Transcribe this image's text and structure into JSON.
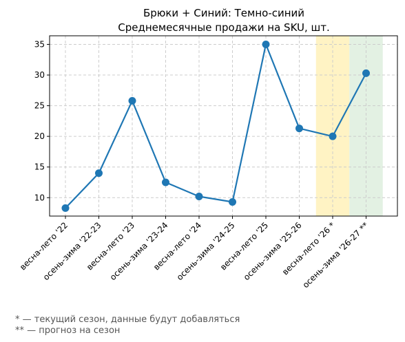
{
  "chart_data": {
    "type": "line",
    "title": "Брюки + Синий: Темно-синий",
    "subtitle": "Среднемесячные продажи на SKU, шт.",
    "xlabel": "",
    "ylabel": "",
    "categories": [
      "весна-лето '22",
      "осень-зима '22-23",
      "весна-лето '23",
      "осень-зима '23-24",
      "весна-лето '24",
      "осень-зима '24-25",
      "весна-лето '25",
      "осень-зима '25-26",
      "весна-лето '26 *",
      "осень-зима '26-27 **"
    ],
    "series": [
      {
        "values": [
          8.3,
          14.0,
          25.8,
          12.5,
          10.2,
          9.3,
          35.0,
          21.3,
          20.0,
          30.3
        ],
        "color": "#1f77b4"
      }
    ],
    "yticks": [
      10,
      15,
      20,
      25,
      30,
      35
    ],
    "ylim": [
      7.0,
      36.4
    ],
    "grid": true,
    "highlights": [
      {
        "category_index": 8,
        "color": "#fff3c4",
        "meaning": "current season"
      },
      {
        "category_index": 9,
        "color": "#e3f1e3",
        "meaning": "forecast"
      }
    ]
  },
  "footnotes": {
    "current": "* — текущий сезон, данные будут добавляться",
    "forecast": "** — прогноз на сезон"
  }
}
